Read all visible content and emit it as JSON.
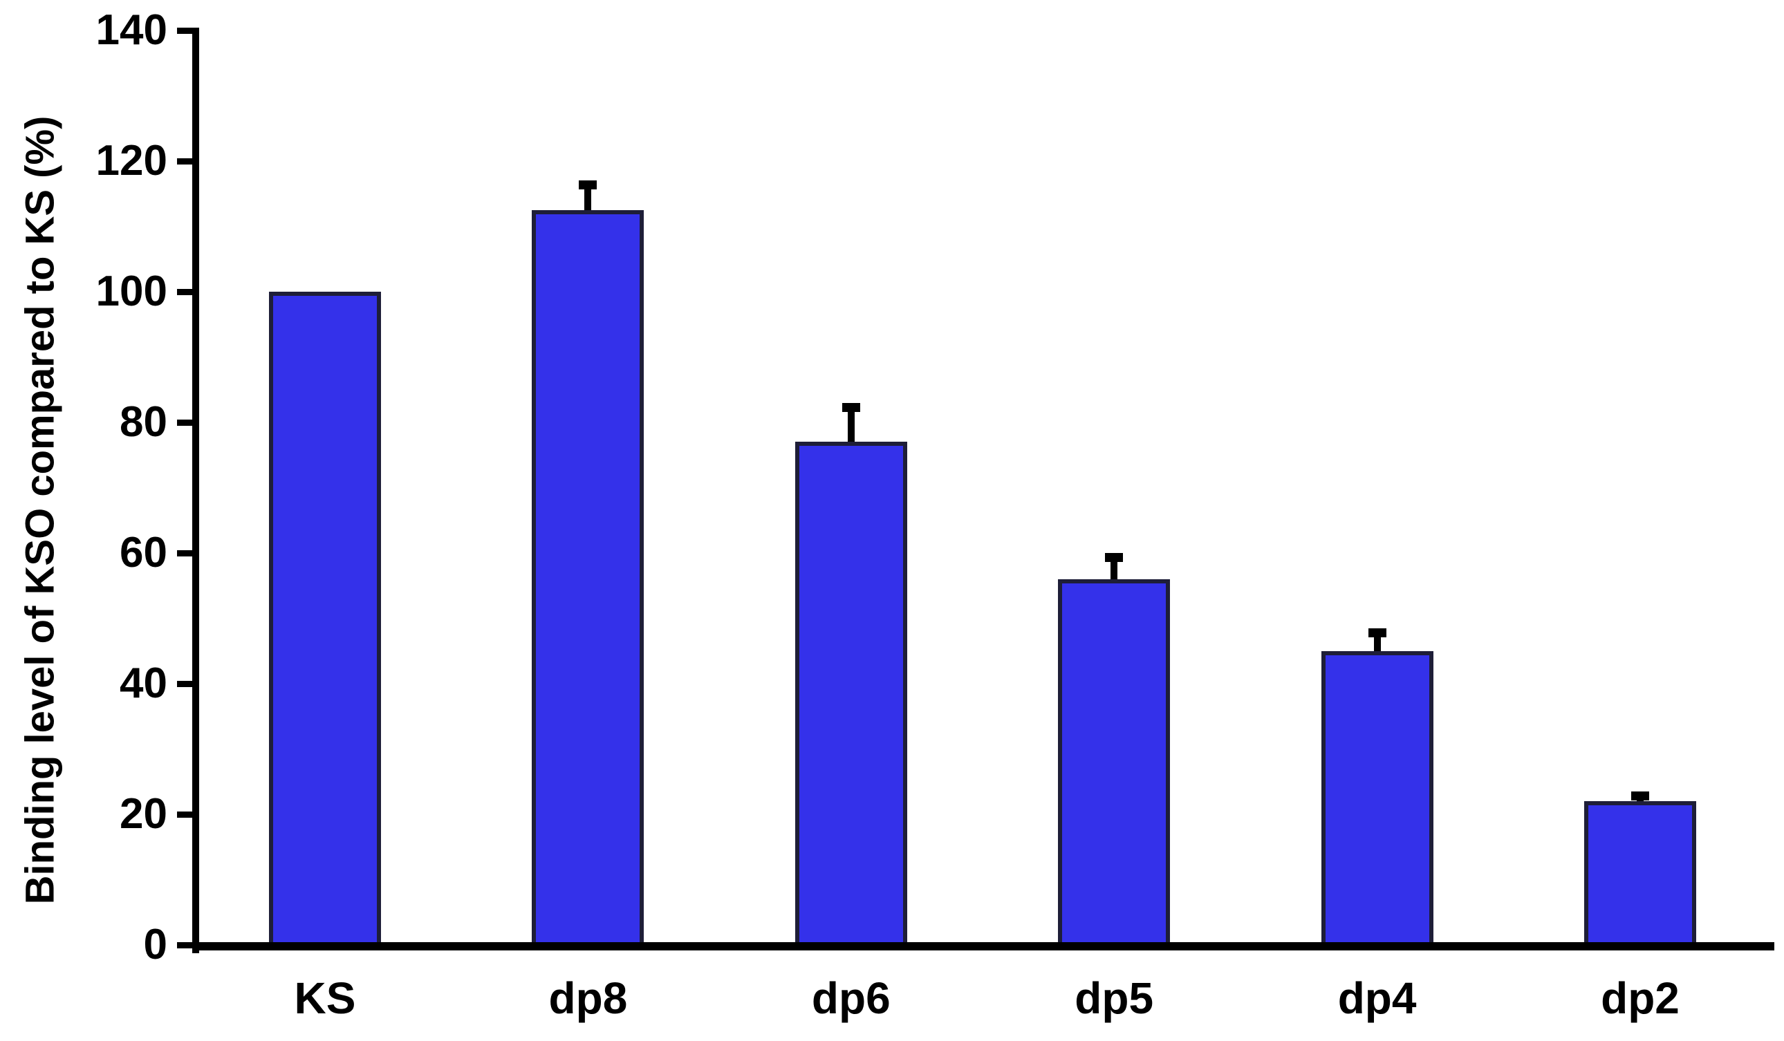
{
  "chart_data": {
    "type": "bar",
    "title": "",
    "categories": [
      "KS",
      "dp8",
      "dp6",
      "dp5",
      "dp4",
      "dp2"
    ],
    "series": [
      {
        "name": "Binding level of KSO compared to KS (%)",
        "values": [
          100,
          112.5,
          77,
          56,
          45,
          22
        ],
        "errors_plus": [
          0,
          4.5,
          6,
          4,
          3.5,
          1.5
        ]
      }
    ],
    "xlabel": "",
    "ylabel": "Binding level of KSO compared to KS (%)",
    "ylim": [
      0,
      140
    ],
    "yticks": [
      0,
      20,
      40,
      60,
      80,
      100,
      120,
      140
    ],
    "grid": false,
    "legend_position": "none",
    "bar_fill_color": "#3431ea",
    "bar_border_color": "#1e1e38",
    "axis_color": "#000000",
    "error_bar_color": "#000000",
    "background_color": "#ffffff"
  }
}
